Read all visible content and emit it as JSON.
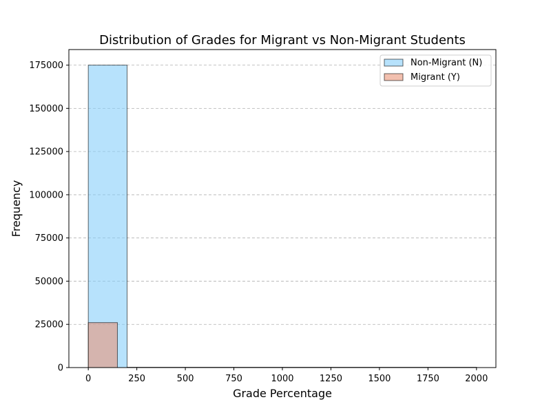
{
  "chart_data": {
    "type": "histogram",
    "title": "Distribution of Grades for Migrant vs Non-Migrant Students",
    "xlabel": "Grade Percentage",
    "ylabel": "Frequency",
    "xlim": [
      -100,
      2100
    ],
    "ylim": [
      0,
      184000
    ],
    "xticks": [
      0,
      250,
      500,
      750,
      1000,
      1250,
      1500,
      1750,
      2000
    ],
    "yticks": [
      0,
      25000,
      50000,
      75000,
      100000,
      125000,
      150000,
      175000
    ],
    "grid": "y-dashed",
    "legend_position": "top-right",
    "series": [
      {
        "name": "Non-Migrant (N)",
        "color": "#87cefa",
        "bins": [
          {
            "x0": 0,
            "x1": 200,
            "value": 175000
          },
          {
            "x0": 200,
            "x1": 2000,
            "value": 0
          }
        ]
      },
      {
        "name": "Migrant (Y)",
        "color": "#e9967a",
        "bins": [
          {
            "x0": 0,
            "x1": 150,
            "value": 26000
          }
        ]
      }
    ]
  }
}
